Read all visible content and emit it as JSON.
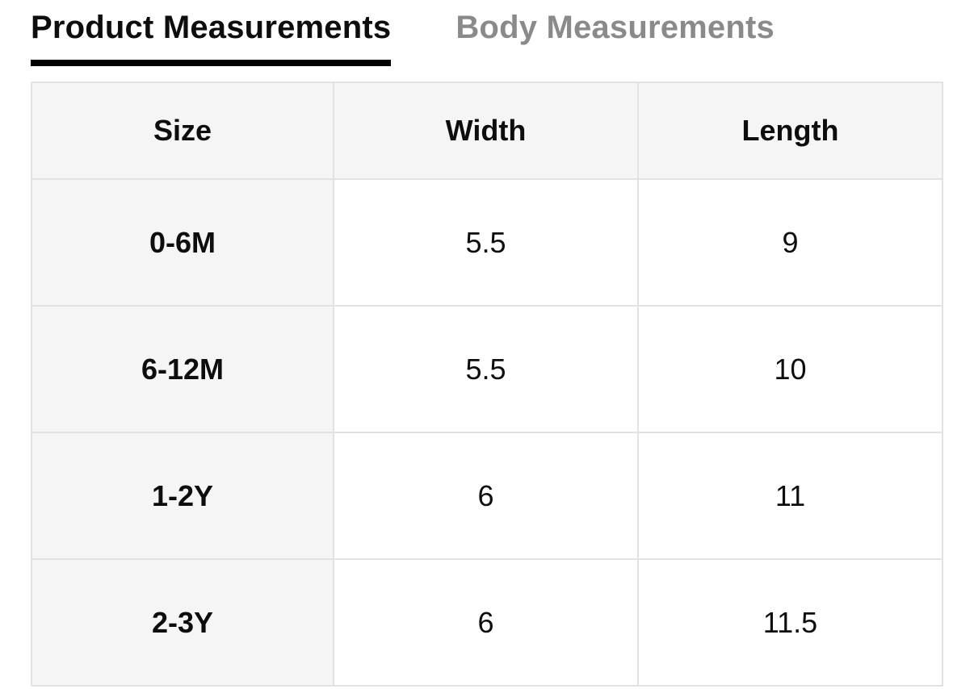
{
  "tabs": {
    "product": {
      "label": "Product Measurements",
      "active": true
    },
    "body": {
      "label": "Body Measurements",
      "active": false
    }
  },
  "table": {
    "columns": [
      "Size",
      "Width",
      "Length"
    ],
    "rows": [
      {
        "size": "0-6M",
        "width": "5.5",
        "length": "9"
      },
      {
        "size": "6-12M",
        "width": "5.5",
        "length": "10"
      },
      {
        "size": "1-2Y",
        "width": "6",
        "length": "11"
      },
      {
        "size": "2-3Y",
        "width": "6",
        "length": "11.5"
      }
    ]
  },
  "colors": {
    "active_tab_text": "#0d0d0d",
    "active_tab_underline": "#000000",
    "inactive_tab_text": "#8a8a8a",
    "header_cell_bg": "#f5f5f5",
    "cell_border": "#e2e2e2",
    "data_cell_bg": "#ffffff"
  }
}
